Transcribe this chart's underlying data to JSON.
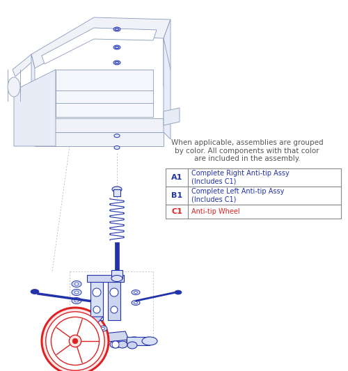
{
  "bg_color": "#ffffff",
  "blue_color": "#3355aa",
  "dark_blue": "#2233aa",
  "frame_color": "#8899bb",
  "frame_fill": "#f0f2f8",
  "frame_fill2": "#e8ecf6",
  "red_color": "#dd2222",
  "gray_dash": "#aaaaaa",
  "table_border": "#888888",
  "note_text_color": "#555555",
  "note_text": "When applicable, assemblies are grouped\nby color. All components with that color\nare included in the assembly.",
  "note_fontsize": 7.5,
  "table_rows": [
    {
      "id": "A1",
      "id_color": "#2233aa",
      "desc": "Complete Right Anti-tip Assy\n(Includes C1)",
      "desc_color": "#2233aa"
    },
    {
      "id": "B1",
      "id_color": "#2233aa",
      "desc": "Complete Left Anti-tip Assy\n(Includes C1)",
      "desc_color": "#2233aa"
    },
    {
      "id": "C1",
      "id_color": "#dd2222",
      "desc": "Anti-tip Wheel",
      "desc_color": "#dd2222"
    }
  ]
}
